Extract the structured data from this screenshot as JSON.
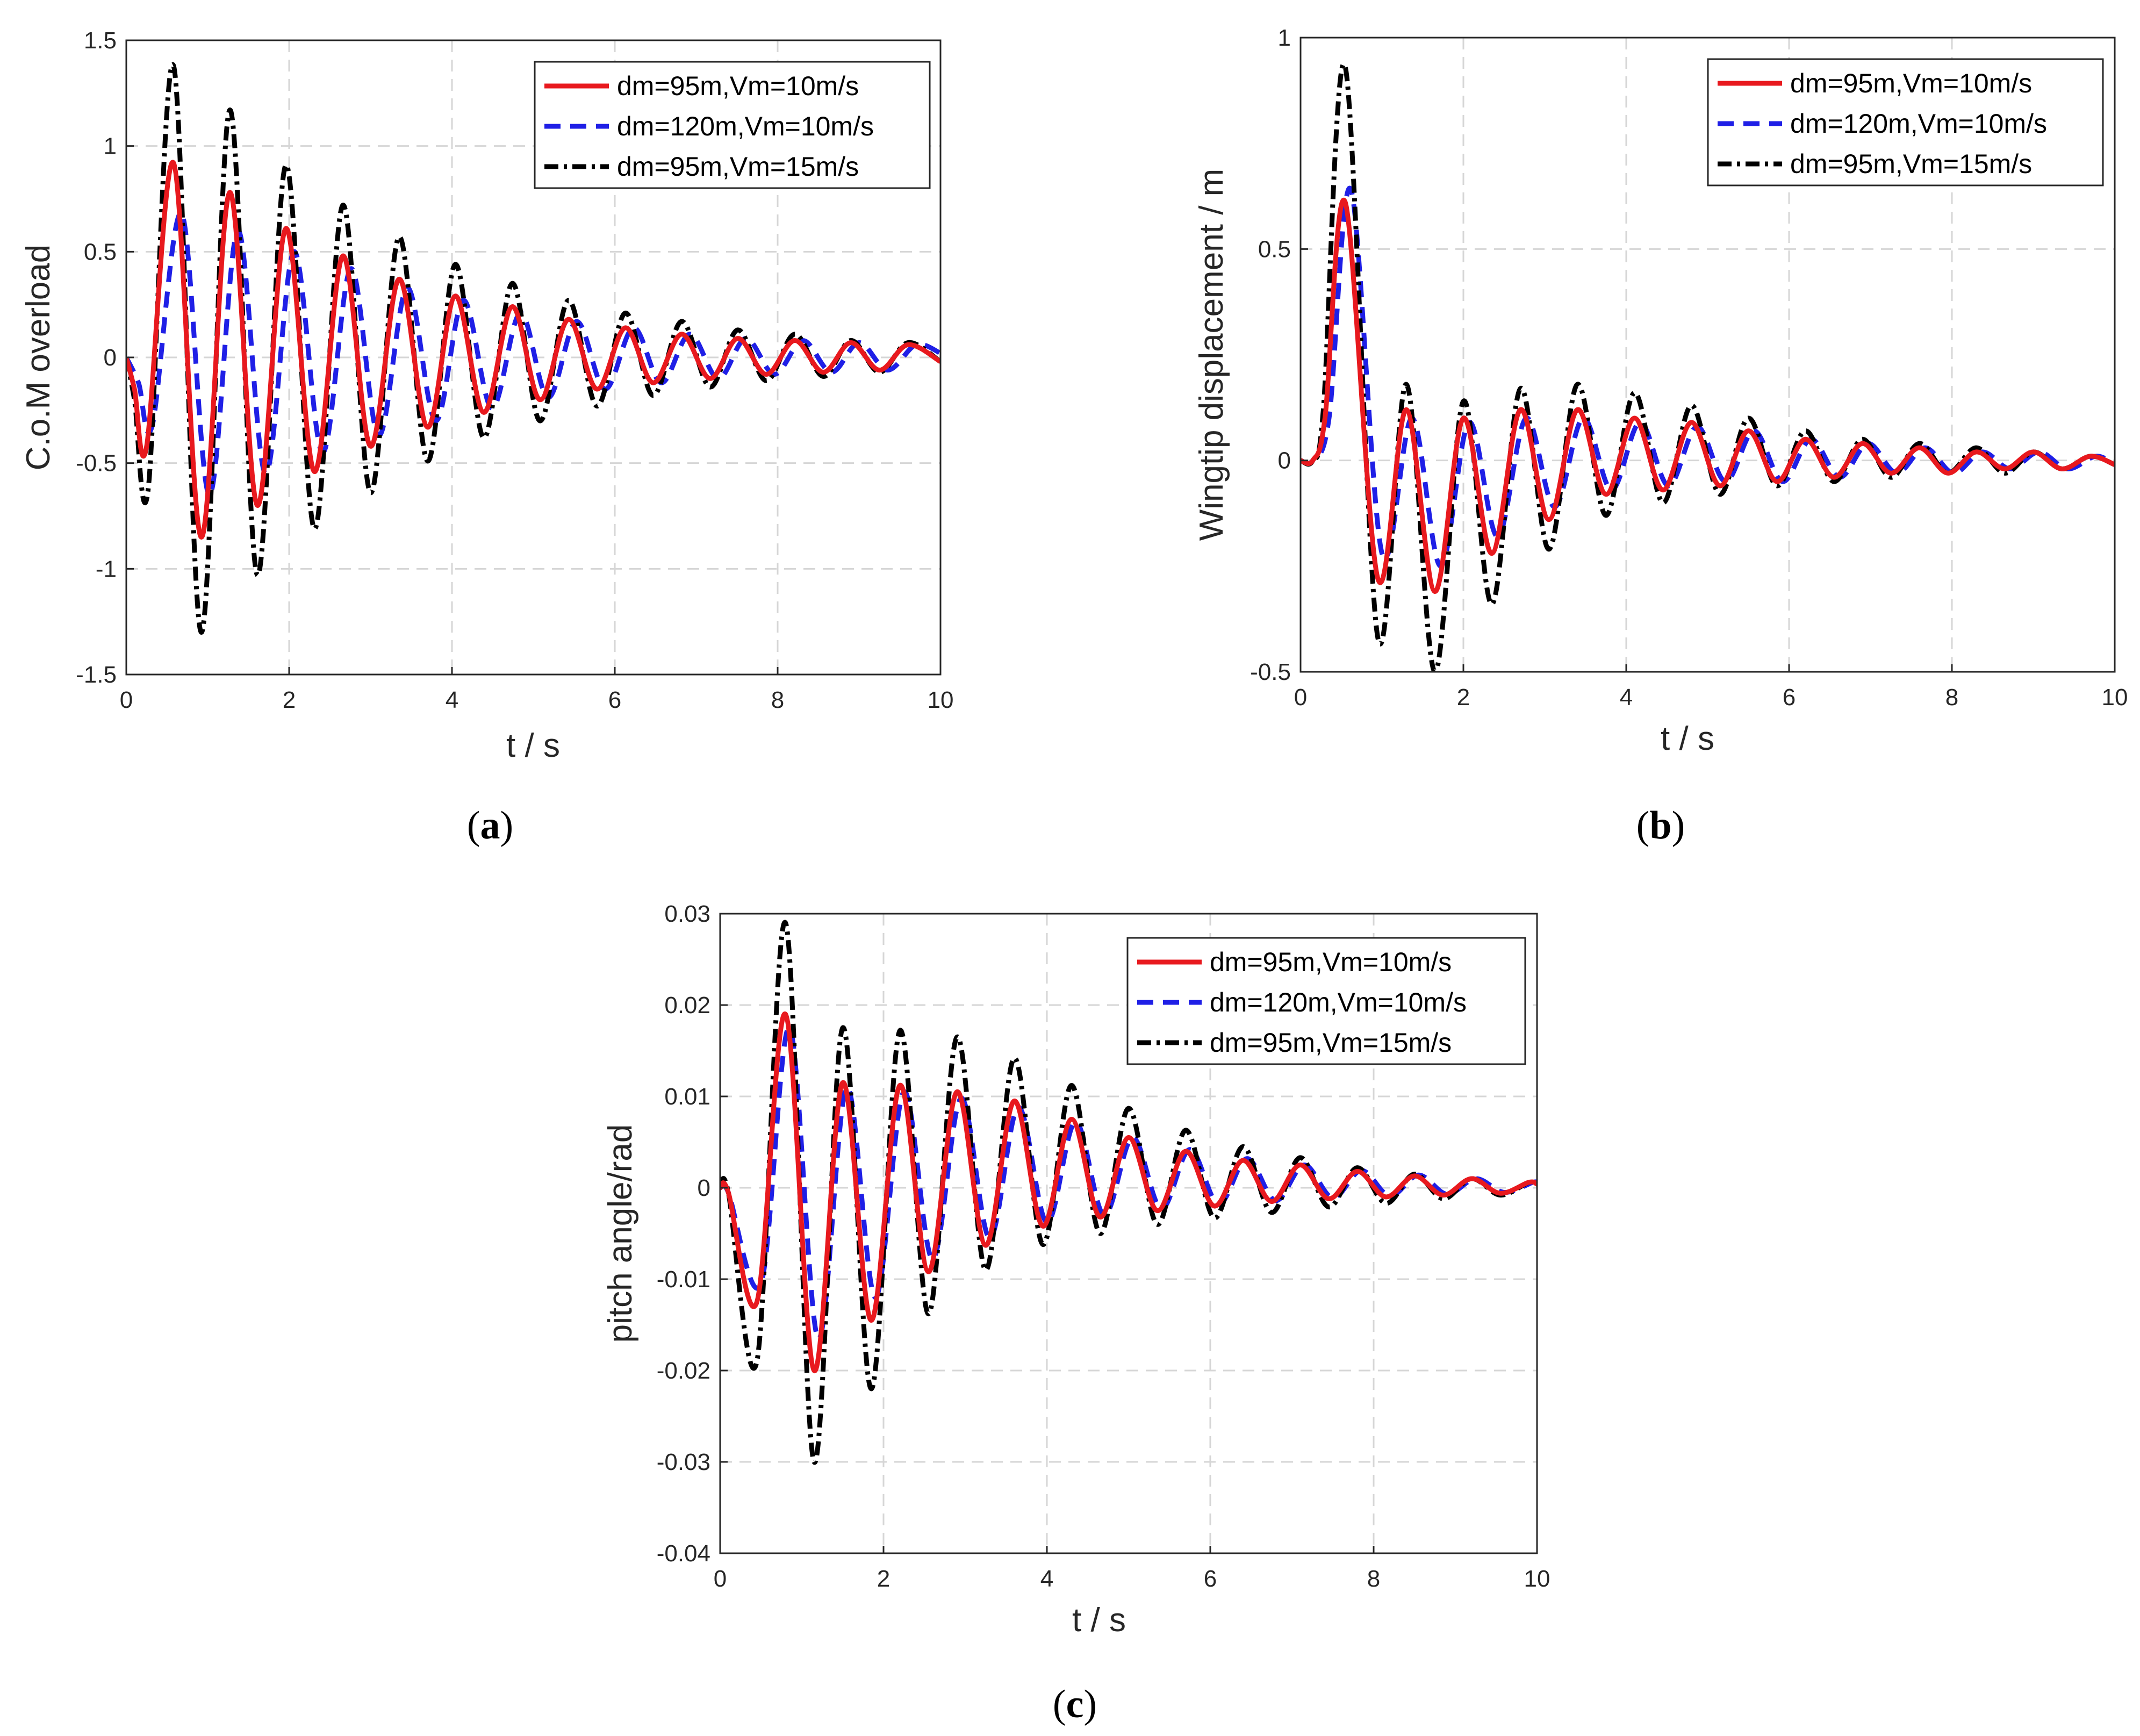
{
  "chart_data": [
    {
      "type": "line",
      "panel": "a",
      "caption_open": "(",
      "caption_letter": "a",
      "caption_close": ")",
      "xlabel": "t / s",
      "ylabel": "C.o.M overload",
      "xlim": [
        0,
        10
      ],
      "ylim": [
        -1.5,
        1.5
      ],
      "xticks": [
        0,
        2,
        4,
        6,
        8,
        10
      ],
      "xtick_labels": [
        "0",
        "2",
        "4",
        "6",
        "8",
        "10"
      ],
      "yticks": [
        -1.5,
        -1,
        -0.5,
        0,
        0.5,
        1,
        1.5
      ],
      "ytick_labels": [
        "-1.5",
        "-1",
        "-0.5",
        "0",
        "0.5",
        "1",
        "1.5"
      ],
      "grid": true,
      "legend_position": "top-right",
      "series": [
        {
          "name": "dm=95m,Vm=10m/s",
          "color": "#e8191e",
          "dash": "solid",
          "x": [
            0,
            0.1,
            0.25,
            0.58,
            0.92,
            1.27,
            1.61,
            1.96,
            2.31,
            2.66,
            3.0,
            3.35,
            3.7,
            4.04,
            4.39,
            4.74,
            5.08,
            5.43,
            5.78,
            6.13,
            6.47,
            6.82,
            7.17,
            7.51,
            7.86,
            8.21,
            8.56,
            8.9,
            9.25,
            9.6,
            10.0
          ],
          "y": [
            0,
            -0.15,
            -0.42,
            0.92,
            -0.85,
            0.78,
            -0.7,
            0.61,
            -0.54,
            0.48,
            -0.42,
            0.37,
            -0.33,
            0.29,
            -0.26,
            0.24,
            -0.2,
            0.18,
            -0.15,
            0.14,
            -0.12,
            0.11,
            -0.1,
            0.09,
            -0.08,
            0.08,
            -0.07,
            0.07,
            -0.06,
            0.06,
            -0.02
          ]
        },
        {
          "name": "dm=120m,Vm=10m/s",
          "color": "#1f1fe6",
          "dash": "dashed",
          "x": [
            0,
            0.15,
            0.32,
            0.68,
            1.02,
            1.37,
            1.71,
            2.06,
            2.41,
            2.76,
            3.1,
            3.45,
            3.8,
            4.14,
            4.49,
            4.84,
            5.18,
            5.53,
            5.88,
            6.23,
            6.57,
            6.92,
            7.27,
            7.61,
            7.96,
            8.31,
            8.66,
            9.0,
            9.35,
            9.7,
            10.0
          ],
          "y": [
            0,
            -0.12,
            -0.32,
            0.68,
            -0.65,
            0.6,
            -0.55,
            0.5,
            -0.45,
            0.42,
            -0.37,
            0.33,
            -0.3,
            0.27,
            -0.24,
            0.21,
            -0.19,
            0.17,
            -0.15,
            0.14,
            -0.12,
            0.11,
            -0.1,
            0.09,
            -0.08,
            0.08,
            -0.07,
            0.07,
            -0.06,
            0.06,
            0.02
          ]
        },
        {
          "name": "dm=95m,Vm=15m/s",
          "color": "#000000",
          "dash": "dashdot",
          "x": [
            0,
            0.1,
            0.27,
            0.58,
            0.92,
            1.27,
            1.61,
            1.96,
            2.31,
            2.66,
            3.0,
            3.35,
            3.7,
            4.04,
            4.39,
            4.74,
            5.08,
            5.43,
            5.78,
            6.13,
            6.47,
            6.82,
            7.17,
            7.51,
            7.86,
            8.21,
            8.56,
            8.9,
            9.25,
            9.6,
            10.0
          ],
          "y": [
            0,
            -0.2,
            -0.62,
            1.38,
            -1.3,
            1.17,
            -1.03,
            0.91,
            -0.81,
            0.72,
            -0.64,
            0.57,
            -0.49,
            0.44,
            -0.38,
            0.35,
            -0.3,
            0.27,
            -0.23,
            0.21,
            -0.18,
            0.17,
            -0.14,
            0.13,
            -0.11,
            0.11,
            -0.09,
            0.08,
            -0.07,
            0.07,
            -0.02
          ]
        }
      ]
    },
    {
      "type": "line",
      "panel": "b",
      "caption_open": "(",
      "caption_letter": "b",
      "caption_close": ")",
      "xlabel": "t / s",
      "ylabel": "Wingtip displacement / m",
      "xlim": [
        0,
        10
      ],
      "ylim": [
        -0.5,
        1
      ],
      "xticks": [
        0,
        2,
        4,
        6,
        8,
        10
      ],
      "xtick_labels": [
        "0",
        "2",
        "4",
        "6",
        "8",
        "10"
      ],
      "yticks": [
        -0.5,
        0,
        0.5,
        1
      ],
      "ytick_labels": [
        "-0.5",
        "0",
        "0.5",
        "1"
      ],
      "grid": true,
      "legend_position": "top-right",
      "series": [
        {
          "name": "dm=95m,Vm=10m/s",
          "color": "#e8191e",
          "dash": "solid",
          "x": [
            0,
            0.15,
            0.3,
            0.55,
            0.95,
            1.3,
            1.65,
            2.0,
            2.35,
            2.7,
            3.05,
            3.4,
            3.75,
            4.1,
            4.45,
            4.8,
            5.15,
            5.5,
            5.85,
            6.2,
            6.55,
            6.9,
            7.25,
            7.6,
            7.95,
            8.3,
            8.65,
            9.0,
            9.35,
            9.7,
            10.0
          ],
          "y": [
            0,
            0.0,
            0.1,
            0.61,
            -0.28,
            0.12,
            -0.31,
            0.1,
            -0.22,
            0.12,
            -0.14,
            0.12,
            -0.08,
            0.1,
            -0.07,
            0.09,
            -0.06,
            0.07,
            -0.05,
            0.05,
            -0.04,
            0.04,
            -0.03,
            0.03,
            -0.03,
            0.02,
            -0.02,
            0.02,
            -0.02,
            0.01,
            -0.01
          ]
        },
        {
          "name": "dm=120m,Vm=10m/s",
          "color": "#1f1fe6",
          "dash": "dashed",
          "x": [
            0,
            0.15,
            0.35,
            0.62,
            1.0,
            1.37,
            1.72,
            2.07,
            2.42,
            2.77,
            3.12,
            3.47,
            3.82,
            4.17,
            4.52,
            4.87,
            5.22,
            5.57,
            5.92,
            6.27,
            6.62,
            6.97,
            7.32,
            7.67,
            8.02,
            8.37,
            8.72,
            9.07,
            9.42,
            9.77,
            10.0
          ],
          "y": [
            0,
            0.0,
            0.1,
            0.64,
            -0.22,
            0.1,
            -0.25,
            0.09,
            -0.18,
            0.1,
            -0.11,
            0.1,
            -0.07,
            0.09,
            -0.06,
            0.08,
            -0.05,
            0.07,
            -0.05,
            0.05,
            -0.04,
            0.04,
            -0.03,
            0.03,
            -0.03,
            0.02,
            -0.02,
            0.02,
            -0.02,
            0.01,
            -0.01
          ]
        },
        {
          "name": "dm=95m,Vm=15m/s",
          "color": "#000000",
          "dash": "dashdot",
          "x": [
            0,
            0.15,
            0.28,
            0.55,
            0.95,
            1.3,
            1.65,
            2.0,
            2.35,
            2.7,
            3.05,
            3.4,
            3.75,
            4.1,
            4.45,
            4.8,
            5.15,
            5.5,
            5.85,
            6.2,
            6.55,
            6.9,
            7.25,
            7.6,
            7.95,
            8.3,
            8.65,
            9.0,
            9.35,
            9.7,
            10.0
          ],
          "y": [
            0,
            0.0,
            0.12,
            0.93,
            -0.42,
            0.18,
            -0.5,
            0.14,
            -0.34,
            0.17,
            -0.21,
            0.18,
            -0.13,
            0.16,
            -0.1,
            0.13,
            -0.08,
            0.1,
            -0.06,
            0.07,
            -0.05,
            0.05,
            -0.04,
            0.04,
            -0.03,
            0.03,
            -0.03,
            0.02,
            -0.02,
            0.01,
            -0.01
          ]
        }
      ]
    },
    {
      "type": "line",
      "panel": "c",
      "caption_open": "(",
      "caption_letter": "c",
      "caption_close": ")",
      "xlabel": "t / s",
      "ylabel": "pitch angle/rad",
      "xlim": [
        0,
        10
      ],
      "ylim": [
        -0.04,
        0.03
      ],
      "xticks": [
        0,
        2,
        4,
        6,
        8,
        10
      ],
      "xtick_labels": [
        "0",
        "2",
        "4",
        "6",
        "8",
        "10"
      ],
      "yticks": [
        -0.04,
        -0.03,
        -0.02,
        -0.01,
        0,
        0.01,
        0.02,
        0.03
      ],
      "ytick_labels": [
        "-0.04",
        "-0.03",
        "-0.02",
        "-0.01",
        "0",
        "0.01",
        "0.02",
        "0.03"
      ],
      "grid": true,
      "legend_position": "top-right",
      "series": [
        {
          "name": "dm=95m,Vm=10m/s",
          "color": "#e8191e",
          "dash": "solid",
          "x": [
            0,
            0.1,
            0.45,
            0.8,
            1.15,
            1.5,
            1.85,
            2.2,
            2.55,
            2.9,
            3.25,
            3.6,
            3.95,
            4.3,
            4.65,
            5.0,
            5.35,
            5.7,
            6.05,
            6.4,
            6.75,
            7.1,
            7.45,
            7.8,
            8.15,
            8.5,
            8.85,
            9.2,
            9.55,
            9.9,
            10.0
          ],
          "y": [
            0,
            -0.0005,
            -0.0125,
            0.019,
            -0.02,
            0.0115,
            -0.0145,
            0.0112,
            -0.0092,
            0.0105,
            -0.0063,
            0.0095,
            -0.0042,
            0.0075,
            -0.0032,
            0.0055,
            -0.0025,
            0.004,
            -0.002,
            0.003,
            -0.0015,
            0.0025,
            -0.0012,
            0.0018,
            -0.001,
            0.0013,
            -0.0008,
            0.001,
            -0.0006,
            0.0006,
            0.0004
          ]
        },
        {
          "name": "dm=120m,Vm=10m/s",
          "color": "#1f1fe6",
          "dash": "dashed",
          "x": [
            0,
            0.1,
            0.5,
            0.85,
            1.2,
            1.55,
            1.9,
            2.25,
            2.6,
            2.95,
            3.3,
            3.65,
            4.0,
            4.35,
            4.7,
            5.05,
            5.4,
            5.75,
            6.1,
            6.45,
            6.8,
            7.15,
            7.5,
            7.85,
            8.2,
            8.55,
            8.9,
            9.25,
            9.6,
            9.95,
            10.0
          ],
          "y": [
            0,
            -0.0005,
            -0.0105,
            0.0175,
            -0.0165,
            0.011,
            -0.012,
            0.0105,
            -0.0078,
            0.0098,
            -0.0055,
            0.0088,
            -0.0038,
            0.0072,
            -0.003,
            0.0055,
            -0.0023,
            0.0042,
            -0.0018,
            0.0032,
            -0.0014,
            0.0025,
            -0.0011,
            0.0019,
            -0.0009,
            0.0014,
            -0.0007,
            0.001,
            -0.0005,
            0.0006,
            0.0005
          ]
        },
        {
          "name": "dm=95m,Vm=15m/s",
          "color": "#000000",
          "dash": "dashdot",
          "x": [
            0,
            0.1,
            0.45,
            0.8,
            1.15,
            1.5,
            1.85,
            2.2,
            2.55,
            2.9,
            3.25,
            3.6,
            3.95,
            4.3,
            4.65,
            5.0,
            5.35,
            5.7,
            6.05,
            6.4,
            6.75,
            7.1,
            7.45,
            7.8,
            8.15,
            8.5,
            8.85,
            9.2,
            9.55,
            9.9,
            10.0
          ],
          "y": [
            0,
            -0.0005,
            -0.019,
            0.029,
            -0.03,
            0.0175,
            -0.022,
            0.0172,
            -0.0138,
            0.0165,
            -0.009,
            0.0142,
            -0.0062,
            0.0112,
            -0.005,
            0.0087,
            -0.004,
            0.0063,
            -0.0033,
            0.0045,
            -0.0027,
            0.0033,
            -0.0021,
            0.0022,
            -0.0017,
            0.0015,
            -0.0012,
            0.001,
            -0.0008,
            0.0006,
            0.0004
          ]
        }
      ]
    }
  ]
}
